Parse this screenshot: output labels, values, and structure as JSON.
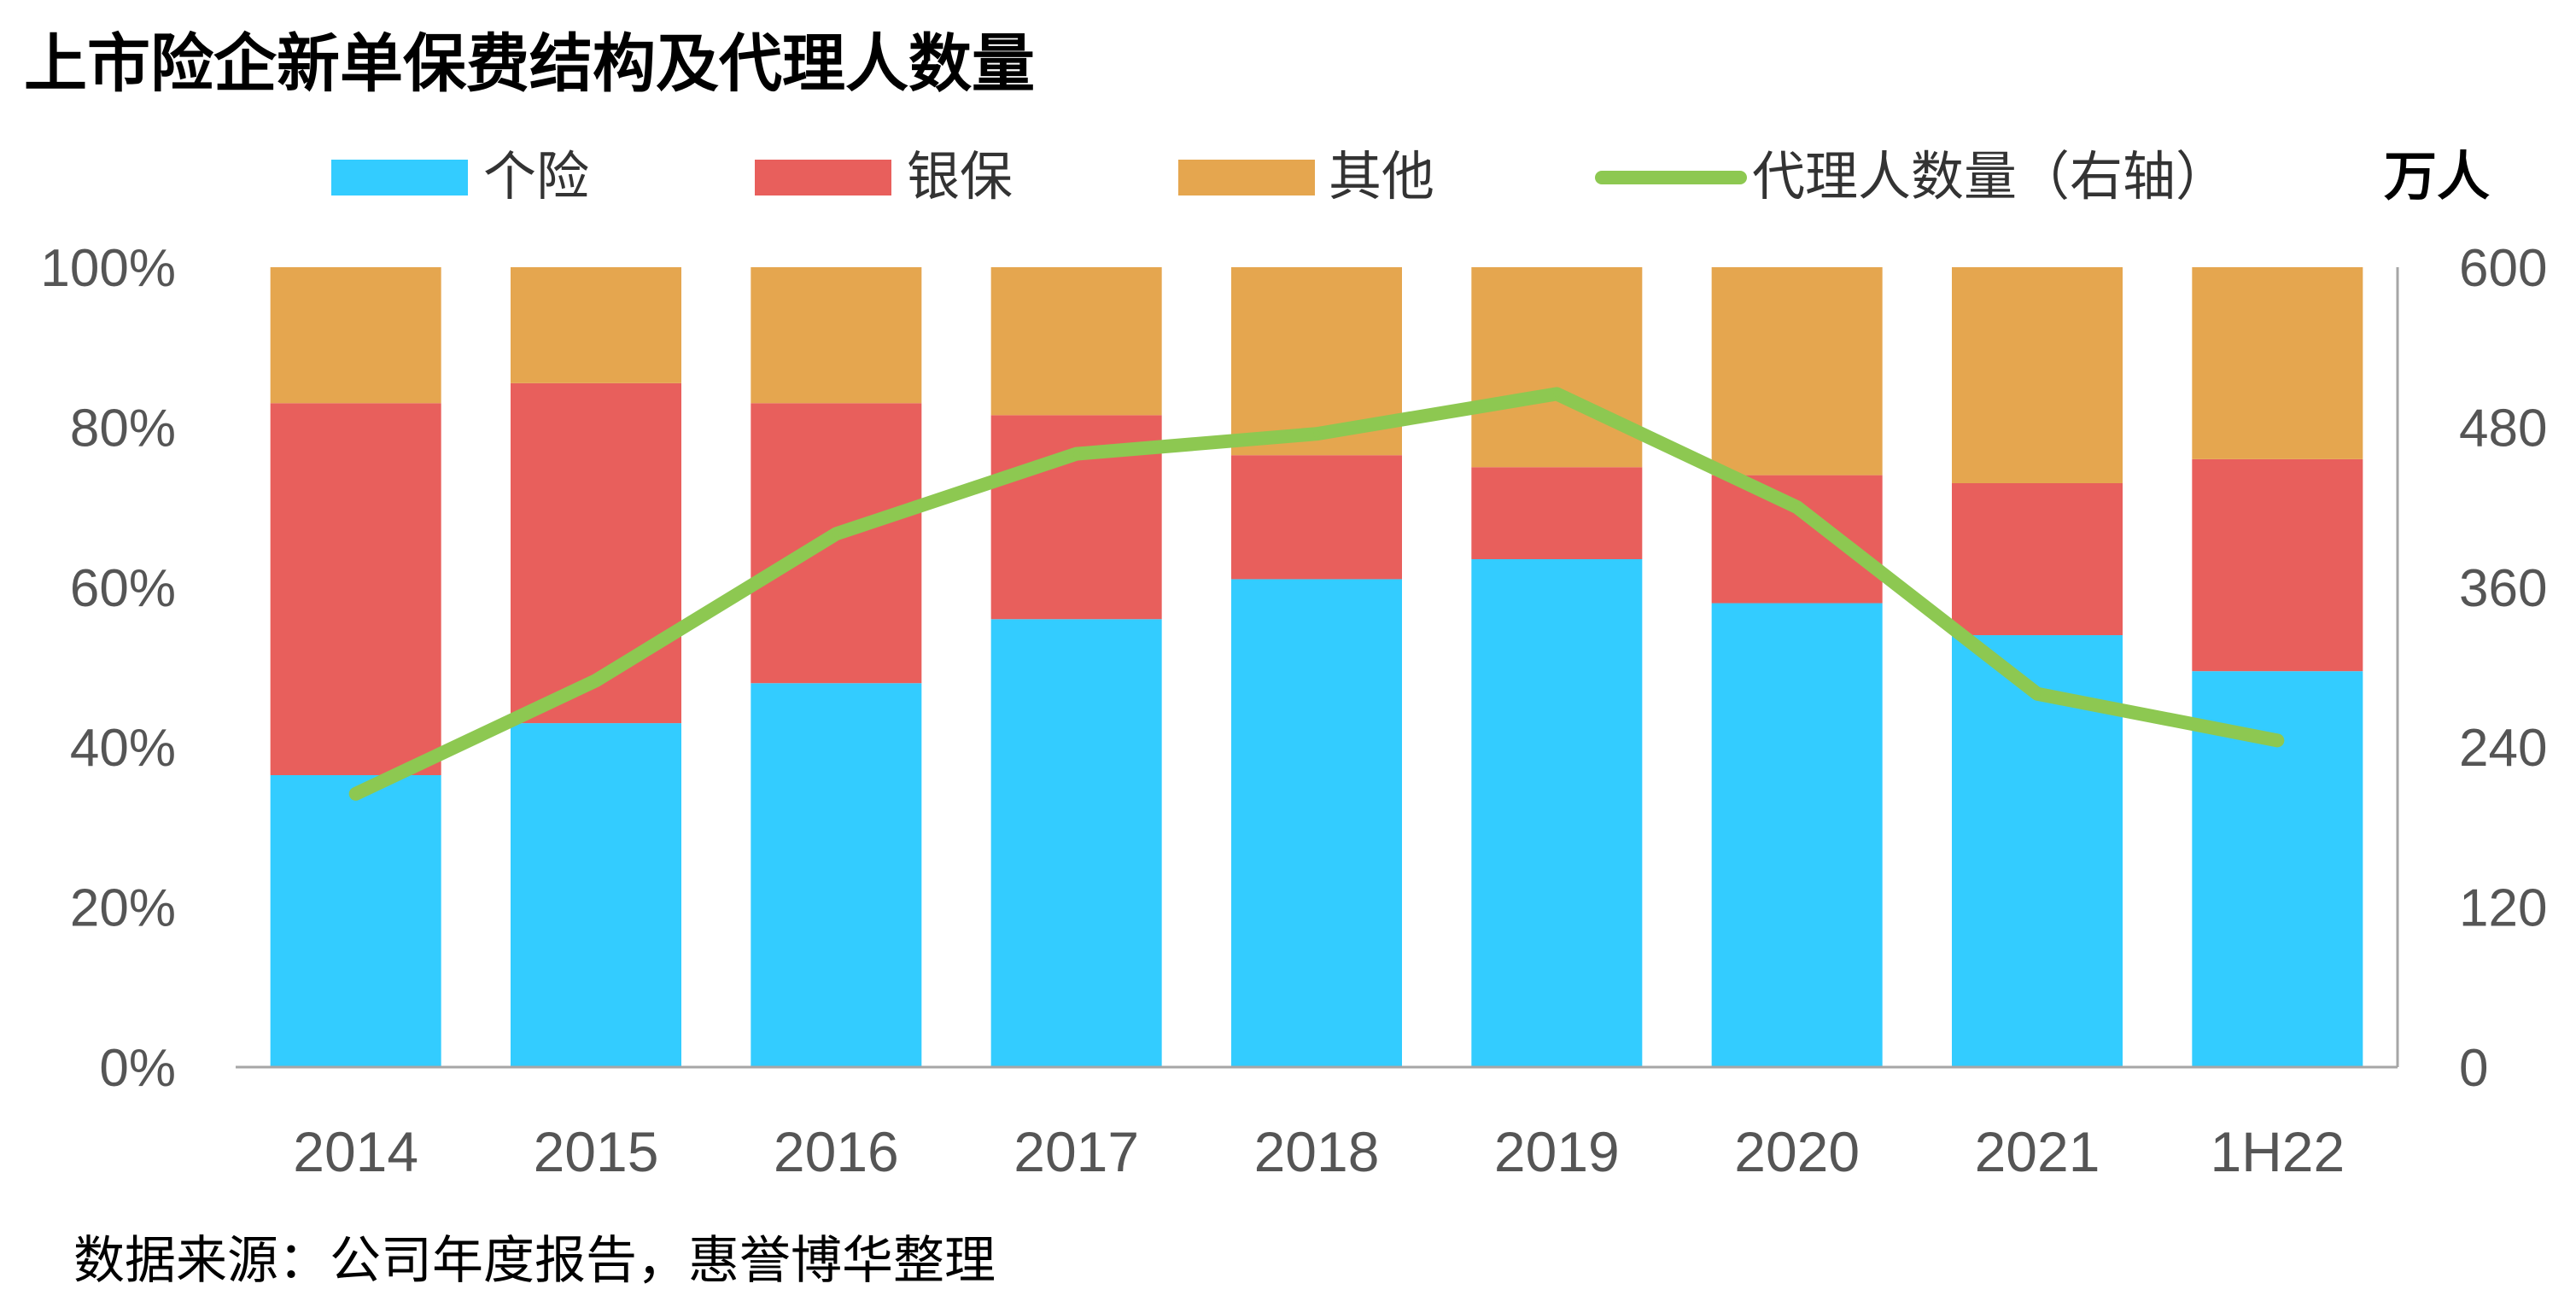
{
  "title": "上市险企新单保费结构及代理人数量",
  "source": "数据来源：公司年度报告，惠誉博华整理",
  "colors": {
    "individual": "#33CCFF",
    "bancassurance": "#E85F5C",
    "other": "#E5A64F",
    "agents": "#8DC851",
    "axis": "#A6A6A6"
  },
  "chart_data": {
    "type": "bar",
    "stacked": true,
    "percent_stacked": true,
    "categories": [
      "2014",
      "2015",
      "2016",
      "2017",
      "2018",
      "2019",
      "2020",
      "2021",
      "1H22"
    ],
    "series": [
      {
        "name": "个险",
        "values": [
          36.5,
          43,
          48,
          56,
          61,
          63.5,
          58,
          54,
          49.5
        ]
      },
      {
        "name": "银保",
        "values": [
          46.5,
          42.5,
          35,
          25.5,
          15.5,
          11.5,
          16,
          19,
          26.5
        ]
      },
      {
        "name": "其他",
        "values": [
          17,
          14.5,
          17,
          18.5,
          23.5,
          25,
          26,
          27,
          24
        ]
      }
    ],
    "line_series": {
      "name": "代理人数量（右轴）",
      "values": [
        205,
        290,
        400,
        460,
        475,
        505,
        420,
        280,
        245
      ]
    },
    "y_left": {
      "ticks": [
        "0%",
        "20%",
        "40%",
        "60%",
        "80%",
        "100%"
      ],
      "range": [
        0,
        100
      ]
    },
    "y_right": {
      "ticks": [
        "0",
        "120",
        "240",
        "360",
        "480",
        "600"
      ],
      "range": [
        0,
        600
      ],
      "unit": "万人"
    },
    "legend_position": "top",
    "grid": false
  }
}
